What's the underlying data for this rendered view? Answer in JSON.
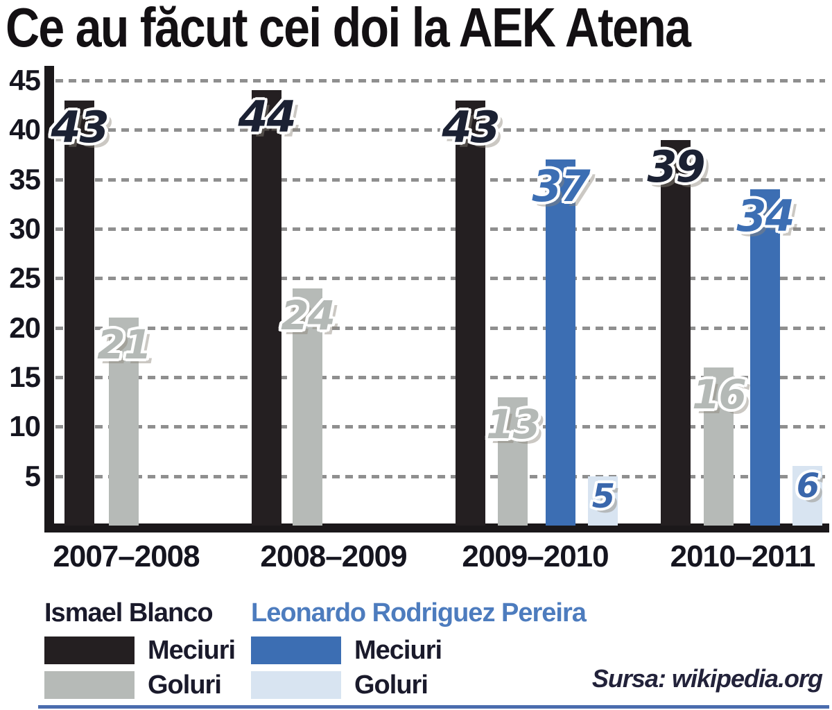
{
  "title": "Ce au făcut cei doi la AEK Atena",
  "source": {
    "text": "Sursa: wikipedia.org"
  },
  "colors": {
    "bar_black": "#241f21",
    "bar_gray": "#b6bab7",
    "bar_blue": "#3c6eb3",
    "bar_lightblue": "#d8e4f1",
    "number_on_black": "#1b2133",
    "number_on_gray": "#b4b9b6",
    "number_on_blue": "#3c6eb3",
    "number_on_lightblue": "#3a67ac",
    "grid": "#8f8f8f",
    "axis": "#1b181a",
    "tick_text": "#15151f",
    "title_text": "#131013",
    "blanco_name": "#1a1a2b",
    "pereira_name": "#4d7cbe",
    "legend_label": "#1a1a2b",
    "source_text": "#22223a",
    "bottom_rule": "#4a6cae"
  },
  "chart_data": {
    "type": "bar",
    "title": "Ce au făcut cei doi la AEK Atena",
    "categories": [
      "2007–2008",
      "2008–2009",
      "2009–2010",
      "2010–2011"
    ],
    "series": [
      {
        "name": "Ismael Blanco – Meciuri",
        "color_key": "bar_black",
        "number_color_key": "number_on_black",
        "values": [
          43,
          44,
          43,
          39
        ]
      },
      {
        "name": "Ismael Blanco – Goluri",
        "color_key": "bar_gray",
        "number_color_key": "number_on_gray",
        "values": [
          21,
          24,
          13,
          16
        ]
      },
      {
        "name": "Leonardo Rodriguez Pereira – Meciuri",
        "color_key": "bar_blue",
        "number_color_key": "number_on_blue",
        "values": [
          null,
          null,
          37,
          34
        ]
      },
      {
        "name": "Leonardo Rodriguez Pereira – Goluri",
        "color_key": "bar_lightblue",
        "number_color_key": "number_on_lightblue",
        "values": [
          null,
          null,
          5,
          6
        ]
      }
    ],
    "ylim": [
      0,
      45
    ],
    "yticks": [
      45,
      40,
      35,
      30,
      25,
      20,
      15,
      10,
      5
    ],
    "grid": "dashed horizontal",
    "legend_position": "bottom",
    "data_labels": "on bar tops"
  },
  "legend": {
    "groups": [
      {
        "player": "Ismael Blanco",
        "name_color_key": "blanco_name",
        "entries": [
          {
            "label": "Meciuri",
            "color_key": "bar_black"
          },
          {
            "label": "Goluri",
            "color_key": "bar_gray"
          }
        ]
      },
      {
        "player": "Leonardo Rodriguez Pereira",
        "name_color_key": "pereira_name",
        "entries": [
          {
            "label": "Meciuri",
            "color_key": "bar_blue"
          },
          {
            "label": "Goluri",
            "color_key": "bar_lightblue"
          }
        ]
      }
    ]
  }
}
